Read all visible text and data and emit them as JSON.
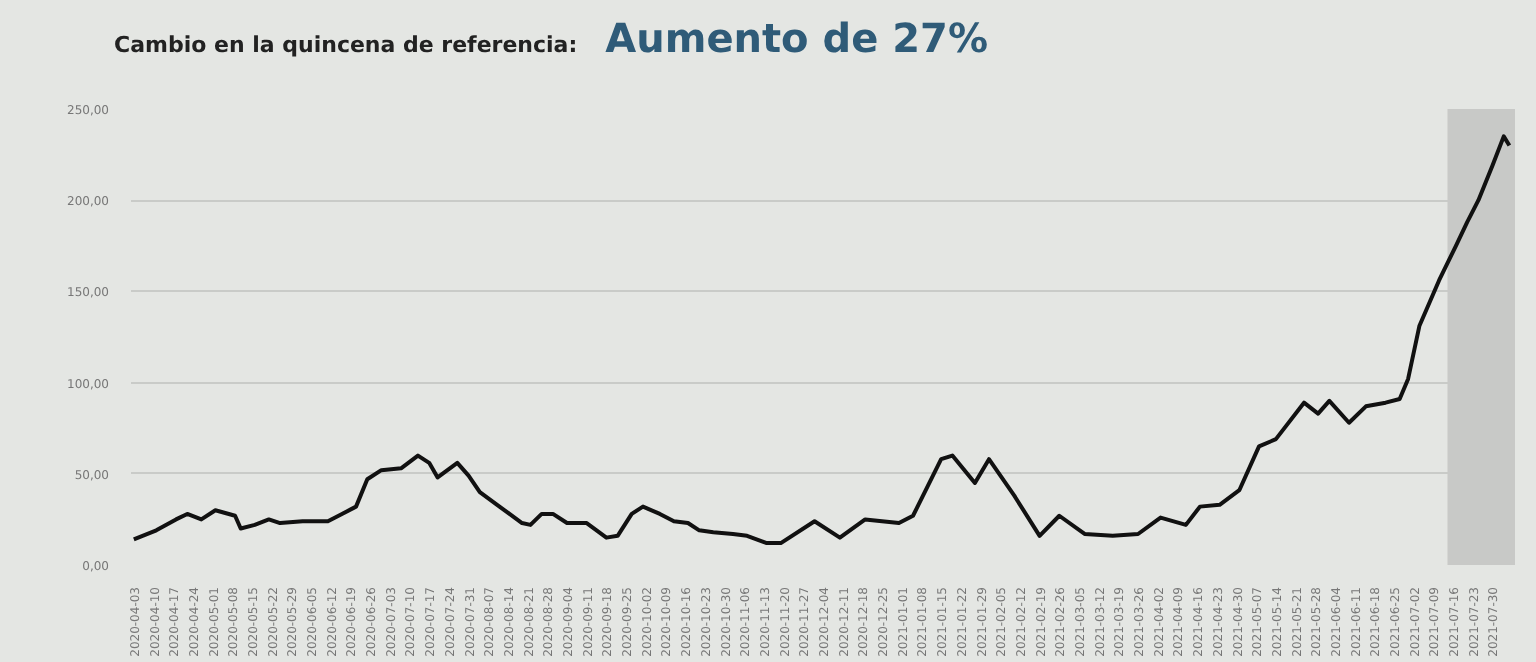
{
  "chart_data": {
    "type": "line",
    "title": "Cambio en la quincena de referencia:",
    "subtitle": "Aumento de 27%",
    "x": [
      "2020-04-03",
      "2020-04-11",
      "2020-04-18",
      "2020-04-22",
      "2020-04-27",
      "2020-05-02",
      "2020-05-09",
      "2020-05-11",
      "2020-05-16",
      "2020-05-21",
      "2020-05-25",
      "2020-06-02",
      "2020-06-11",
      "2020-06-16",
      "2020-06-21",
      "2020-06-25",
      "2020-06-30",
      "2020-07-07",
      "2020-07-13",
      "2020-07-17",
      "2020-07-20",
      "2020-07-27",
      "2020-07-31",
      "2020-08-04",
      "2020-08-11",
      "2020-08-19",
      "2020-08-22",
      "2020-08-26",
      "2020-08-30",
      "2020-09-04",
      "2020-09-11",
      "2020-09-18",
      "2020-09-22",
      "2020-09-27",
      "2020-10-01",
      "2020-10-07",
      "2020-10-12",
      "2020-10-17",
      "2020-10-21",
      "2020-10-26",
      "2020-11-02",
      "2020-11-07",
      "2020-11-14",
      "2020-11-19",
      "2020-12-01",
      "2020-12-10",
      "2020-12-19",
      "2020-12-31",
      "2021-01-05",
      "2021-01-15",
      "2021-01-19",
      "2021-01-27",
      "2021-02-01",
      "2021-02-10",
      "2021-02-19",
      "2021-02-26",
      "2021-03-07",
      "2021-03-17",
      "2021-03-26",
      "2021-04-03",
      "2021-04-12",
      "2021-04-17",
      "2021-04-24",
      "2021-05-01",
      "2021-05-08",
      "2021-05-14",
      "2021-05-24",
      "2021-05-29",
      "2021-06-02",
      "2021-06-09",
      "2021-06-15",
      "2021-06-22",
      "2021-06-27",
      "2021-06-30",
      "2021-07-04",
      "2021-07-11",
      "2021-07-17",
      "2021-07-21",
      "2021-07-25",
      "2021-07-30",
      "2021-08-03",
      "2021-08-05"
    ],
    "series": [
      {
        "color": "#111111",
        "values": [
          14,
          19,
          25,
          28,
          25,
          30,
          27,
          20,
          22,
          25,
          23,
          24,
          24,
          28,
          32,
          47,
          52,
          53,
          60,
          56,
          48,
          56,
          49,
          40,
          32,
          23,
          22,
          28,
          28,
          23,
          23,
          15,
          16,
          28,
          32,
          28,
          24,
          23,
          19,
          18,
          17,
          16,
          12,
          12,
          24,
          15,
          25,
          23,
          27,
          58,
          60,
          45,
          58,
          38,
          16,
          27,
          17,
          16,
          17,
          26,
          22,
          32,
          33,
          41,
          65,
          69,
          89,
          83,
          90,
          78,
          87,
          89,
          91,
          102,
          131,
          156,
          175,
          188,
          200,
          219,
          235,
          230
        ]
      }
    ],
    "xlim": [
      "2020-04-02",
      "2021-08-07"
    ],
    "xticks": [
      {
        "value": "2020-04-03",
        "label": "2020-04-03"
      },
      {
        "value": "2020-04-10",
        "label": "2020-04-10"
      },
      {
        "value": "2020-04-17",
        "label": "2020-04-17"
      },
      {
        "value": "2020-04-24",
        "label": "2020-04-24"
      },
      {
        "value": "2020-05-01",
        "label": "2020-05-01"
      },
      {
        "value": "2020-05-08",
        "label": "2020-05-08"
      },
      {
        "value": "2020-05-15",
        "label": "2020-05-15"
      },
      {
        "value": "2020-05-22",
        "label": "2020-05-22"
      },
      {
        "value": "2020-05-29",
        "label": "2020-05-29"
      },
      {
        "value": "2020-06-05",
        "label": "2020-06-05"
      },
      {
        "value": "2020-06-12",
        "label": "2020-06-12"
      },
      {
        "value": "2020-06-19",
        "label": "2020-06-19"
      },
      {
        "value": "2020-06-26",
        "label": "2020-06-26"
      },
      {
        "value": "2020-07-03",
        "label": "2020-07-03"
      },
      {
        "value": "2020-07-10",
        "label": "2020-07-10"
      },
      {
        "value": "2020-07-17",
        "label": "2020-07-17"
      },
      {
        "value": "2020-07-24",
        "label": "2020-07-24"
      },
      {
        "value": "2020-07-31",
        "label": "2020-07-31"
      },
      {
        "value": "2020-08-07",
        "label": "2020-08-07"
      },
      {
        "value": "2020-08-14",
        "label": "2020-08-14"
      },
      {
        "value": "2020-08-21",
        "label": "2020-08-21"
      },
      {
        "value": "2020-08-28",
        "label": "2020-08-28"
      },
      {
        "value": "2020-09-04",
        "label": "2020-09-04"
      },
      {
        "value": "2020-09-11",
        "label": "2020-09-11"
      },
      {
        "value": "2020-09-18",
        "label": "2020-09-18"
      },
      {
        "value": "2020-09-25",
        "label": "2020-09-25"
      },
      {
        "value": "2020-10-02",
        "label": "2020-10-02"
      },
      {
        "value": "2020-10-09",
        "label": "2020-10-09"
      },
      {
        "value": "2020-10-16",
        "label": "2020-10-16"
      },
      {
        "value": "2020-10-23",
        "label": "2020-10-23"
      },
      {
        "value": "2020-10-30",
        "label": "2020-10-30"
      },
      {
        "value": "2020-11-06",
        "label": "2020-11-06"
      },
      {
        "value": "2020-11-13",
        "label": "2020-11-13"
      },
      {
        "value": "2020-11-20",
        "label": "2020-11-20"
      },
      {
        "value": "2020-11-27",
        "label": "2020-11-27"
      },
      {
        "value": "2020-12-04",
        "label": "2020-12-04"
      },
      {
        "value": "2020-12-11",
        "label": "2020-12-11"
      },
      {
        "value": "2020-12-18",
        "label": "2020-12-18"
      },
      {
        "value": "2020-12-25",
        "label": "2020-12-25"
      },
      {
        "value": "2021-01-01",
        "label": "2021-01-01"
      },
      {
        "value": "2021-01-08",
        "label": "2021-01-08"
      },
      {
        "value": "2021-01-15",
        "label": "2021-01-15"
      },
      {
        "value": "2021-01-22",
        "label": "2021-01-22"
      },
      {
        "value": "2021-01-29",
        "label": "2021-01-29"
      },
      {
        "value": "2021-02-05",
        "label": "2021-02-05"
      },
      {
        "value": "2021-02-12",
        "label": "2021-02-12"
      },
      {
        "value": "2021-02-19",
        "label": "2021-02-19"
      },
      {
        "value": "2021-02-26",
        "label": "2021-02-26"
      },
      {
        "value": "2021-03-05",
        "label": "2021-03-05"
      },
      {
        "value": "2021-03-12",
        "label": "2021-03-12"
      },
      {
        "value": "2021-03-19",
        "label": "2021-03-19"
      },
      {
        "value": "2021-03-26",
        "label": "2021-03-26"
      },
      {
        "value": "2021-04-02",
        "label": "2021-04-02"
      },
      {
        "value": "2021-04-09",
        "label": "2021-04-09"
      },
      {
        "value": "2021-04-16",
        "label": "2021-04-16"
      },
      {
        "value": "2021-04-23",
        "label": "2021-04-23"
      },
      {
        "value": "2021-04-30",
        "label": "2021-04-30"
      },
      {
        "value": "2021-05-07",
        "label": "2021-05-07"
      },
      {
        "value": "2021-05-14",
        "label": "2021-05-14"
      },
      {
        "value": "2021-05-21",
        "label": "2021-05-21"
      },
      {
        "value": "2021-05-28",
        "label": "2021-05-28"
      },
      {
        "value": "2021-06-04",
        "label": "2021-06-04"
      },
      {
        "value": "2021-06-11",
        "label": "2021-06-11"
      },
      {
        "value": "2021-06-18",
        "label": "2021-06-18"
      },
      {
        "value": "2021-06-25",
        "label": "2021-06-25"
      },
      {
        "value": "2021-07-02",
        "label": "2021-07-02"
      },
      {
        "value": "2021-07-09",
        "label": "2021-07-09"
      },
      {
        "value": "2021-07-16",
        "label": "2021-07-16"
      },
      {
        "value": "2021-07-23",
        "label": "2021-07-23"
      },
      {
        "value": "2021-07-30",
        "label": "2021-07-30"
      }
    ],
    "ylim": [
      0,
      250
    ],
    "yticks": [
      {
        "value": 0,
        "label": "0,00"
      },
      {
        "value": 50,
        "label": "50,00"
      },
      {
        "value": 100,
        "label": "100,00"
      },
      {
        "value": 150,
        "label": "150,00"
      },
      {
        "value": 200,
        "label": "200,00"
      },
      {
        "value": 250,
        "label": "250,00"
      }
    ],
    "grid": "y",
    "bands": [
      {
        "axis": "x",
        "from": "2021-07-14",
        "to": "2021-08-07",
        "color": "#c8c9c7"
      }
    ]
  }
}
